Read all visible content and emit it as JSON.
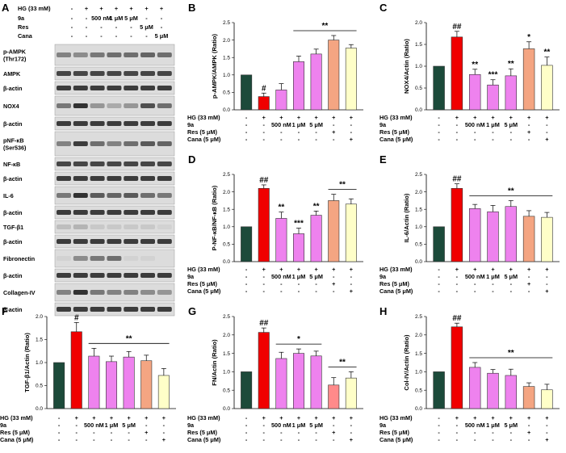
{
  "colors": {
    "control": "#1c4a3a",
    "hg": "#f00000",
    "compound": "#ee82ee",
    "res": "#f4a582",
    "cana": "#ffffc8",
    "fibro_res": "#ff8a8a"
  },
  "panelA": {
    "letter": "A",
    "conditions": [
      {
        "label": "HG (33 mM)",
        "values": [
          "-",
          "+",
          "+",
          "+",
          "+",
          "+",
          "+"
        ]
      },
      {
        "label": "9a",
        "values": [
          "-",
          "-",
          "500 nM",
          "1 μM",
          "5 μM",
          "-",
          "-"
        ]
      },
      {
        "label": "Res",
        "values": [
          "-",
          "-",
          "-",
          "-",
          "-",
          "5 μM",
          "-"
        ]
      },
      {
        "label": "Cana",
        "values": [
          "-",
          "-",
          "-",
          "-",
          "-",
          "-",
          "5 μM"
        ]
      }
    ],
    "bands": [
      {
        "label": "p-AMPK\n(Thr172)"
      },
      {
        "label": "AMPK"
      },
      {
        "label": "β-actin"
      },
      {
        "label": "NOX4"
      },
      {
        "label": "β-actin"
      },
      {
        "label": "pNF-κB\n(Ser536)"
      },
      {
        "label": "NF-κB"
      },
      {
        "label": "β-actin"
      },
      {
        "label": "IL-6"
      },
      {
        "label": "β-actin"
      },
      {
        "label": "TGF-β1"
      },
      {
        "label": "β-actin"
      },
      {
        "label": "Fibronectin"
      },
      {
        "label": "β-actin"
      },
      {
        "label": "Collagen-IV"
      },
      {
        "label": "β-actin"
      }
    ]
  },
  "chart_data": [
    {
      "panel": "B",
      "type": "bar",
      "ylabel": "p-AMPK/AMPK (Ratio)",
      "ylim": [
        0,
        2.5
      ],
      "yticks": [
        "0.0",
        "0.5",
        "1.0",
        "1.5",
        "2.0",
        "2.5"
      ],
      "values": [
        1.0,
        0.38,
        0.57,
        1.38,
        1.6,
        2.0,
        1.77
      ],
      "errors": [
        0,
        0.1,
        0.18,
        0.16,
        0.14,
        0.13,
        0.1
      ],
      "annotations": [
        "",
        "#",
        "",
        "",
        "",
        "",
        ""
      ],
      "bracket": {
        "from": 3,
        "to": 6,
        "label": "**"
      },
      "conditions": [
        {
          "label": "HG (33 mM)",
          "values": [
            "-",
            "+",
            "+",
            "+",
            "+",
            "+",
            "+"
          ]
        },
        {
          "label": "9a",
          "values": [
            "-",
            "-",
            "500 nM",
            "1 μM",
            "5 μM",
            "-",
            "-"
          ]
        },
        {
          "label": "Res (5 μM)",
          "values": [
            "-",
            "-",
            "-",
            "-",
            "-",
            "+",
            "-"
          ]
        },
        {
          "label": "Cana (5 μM)",
          "values": [
            "-",
            "-",
            "-",
            "-",
            "-",
            "-",
            "+"
          ]
        }
      ]
    },
    {
      "panel": "C",
      "type": "bar",
      "ylabel": "NOX4/Actin (Ratio)",
      "ylim": [
        0,
        2.0
      ],
      "yticks": [
        "0.0",
        "0.5",
        "1.0",
        "1.5",
        "2.0"
      ],
      "values": [
        1.0,
        1.67,
        0.81,
        0.57,
        0.78,
        1.4,
        1.02
      ],
      "errors": [
        0,
        0.13,
        0.12,
        0.12,
        0.16,
        0.16,
        0.19
      ],
      "annotations": [
        "",
        "##",
        "**",
        "***",
        "**",
        "*",
        "**"
      ],
      "bracket": null,
      "conditions": [
        {
          "label": "HG (33 mM)",
          "values": [
            "-",
            "+",
            "+",
            "+",
            "+",
            "+",
            "+"
          ]
        },
        {
          "label": "9a",
          "values": [
            "-",
            "-",
            "500 nM",
            "1 μM",
            "5 μM",
            "-",
            "-"
          ]
        },
        {
          "label": "Res (5 μM)",
          "values": [
            "-",
            "-",
            "-",
            "-",
            "-",
            "+",
            "-"
          ]
        },
        {
          "label": "Cana (5 μM)",
          "values": [
            "-",
            "-",
            "-",
            "-",
            "-",
            "-",
            "+"
          ]
        }
      ]
    },
    {
      "panel": "D",
      "type": "bar",
      "ylabel": "P-NF-κB/NF-κB (Ratio)",
      "ylim": [
        0,
        2.5
      ],
      "yticks": [
        "0.0",
        "0.5",
        "1.0",
        "1.5",
        "2.0",
        "2.5"
      ],
      "values": [
        1.0,
        2.1,
        1.24,
        0.8,
        1.33,
        1.75,
        1.65
      ],
      "errors": [
        0,
        0.1,
        0.18,
        0.16,
        0.12,
        0.18,
        0.15
      ],
      "annotations": [
        "",
        "##",
        "**",
        "***",
        "**",
        "",
        ""
      ],
      "bracket": {
        "from": 5,
        "to": 6,
        "label": "**"
      },
      "conditions": [
        {
          "label": "HG (33 mM)",
          "values": [
            "-",
            "+",
            "+",
            "+",
            "+",
            "+",
            "+"
          ]
        },
        {
          "label": "9a",
          "values": [
            "-",
            "-",
            "500 nM",
            "1 μM",
            "5 μM",
            "-",
            "-"
          ]
        },
        {
          "label": "Res (5 μM)",
          "values": [
            "-",
            "-",
            "-",
            "-",
            "-",
            "+",
            "-"
          ]
        },
        {
          "label": "Cana (5 μM)",
          "values": [
            "-",
            "-",
            "-",
            "-",
            "-",
            "-",
            "+"
          ]
        }
      ]
    },
    {
      "panel": "E",
      "type": "bar",
      "ylabel": "IL-6/Actin (Ratio)",
      "ylim": [
        0,
        2.5
      ],
      "yticks": [
        "0.0",
        "0.5",
        "1.0",
        "1.5",
        "2.0",
        "2.5"
      ],
      "values": [
        1.0,
        2.1,
        1.52,
        1.43,
        1.58,
        1.3,
        1.27
      ],
      "errors": [
        0,
        0.13,
        0.12,
        0.18,
        0.17,
        0.16,
        0.14
      ],
      "annotations": [
        "",
        "##",
        "",
        "",
        "",
        "",
        ""
      ],
      "bracket": {
        "from": 2,
        "to": 6,
        "label": "**"
      },
      "conditions": [
        {
          "label": "HG (33 mM)",
          "values": [
            "-",
            "+",
            "+",
            "+",
            "+",
            "+",
            "+"
          ]
        },
        {
          "label": "9a",
          "values": [
            "-",
            "-",
            "500 nM",
            "1 μM",
            "5 μM",
            "-",
            "-"
          ]
        },
        {
          "label": "Res (5 μM)",
          "values": [
            "-",
            "-",
            "-",
            "-",
            "-",
            "+",
            "-"
          ]
        },
        {
          "label": "Cana (5 μM)",
          "values": [
            "-",
            "-",
            "-",
            "-",
            "-",
            "-",
            "+"
          ]
        }
      ]
    },
    {
      "panel": "F",
      "type": "bar",
      "ylabel": "TGF-β1/Actin (Ratio)",
      "ylim": [
        0,
        2.0
      ],
      "yticks": [
        "0.0",
        "0.5",
        "1.0",
        "1.5",
        "2.0"
      ],
      "values": [
        1.0,
        1.67,
        1.14,
        1.02,
        1.12,
        1.04,
        0.72
      ],
      "errors": [
        0,
        0.2,
        0.17,
        0.12,
        0.12,
        0.12,
        0.15
      ],
      "annotations": [
        "",
        "#",
        "",
        "",
        "",
        "",
        ""
      ],
      "bracket": {
        "from": 2,
        "to": 6,
        "label": "**"
      },
      "conditions": [
        {
          "label": "HG (33 mM)",
          "values": [
            "-",
            "+",
            "+",
            "+",
            "+",
            "+",
            "+"
          ]
        },
        {
          "label": "9a",
          "values": [
            "-",
            "-",
            "500 nM",
            "1 μM",
            "5 μM",
            "-",
            "-"
          ]
        },
        {
          "label": "Res (5 μM)",
          "values": [
            "-",
            "-",
            "-",
            "-",
            "-",
            "+",
            "-"
          ]
        },
        {
          "label": "Cana (5 μM)",
          "values": [
            "-",
            "-",
            "-",
            "-",
            "-",
            "-",
            "+"
          ]
        }
      ]
    },
    {
      "panel": "G",
      "type": "bar",
      "ylabel": "FN/Actin (Ratio)",
      "ylim": [
        0,
        2.5
      ],
      "yticks": [
        "0.0",
        "0.5",
        "1.0",
        "1.5",
        "2.0",
        "2.5"
      ],
      "values": [
        1.0,
        2.07,
        1.36,
        1.5,
        1.43,
        0.64,
        0.83
      ],
      "errors": [
        0,
        0.12,
        0.17,
        0.12,
        0.13,
        0.2,
        0.17
      ],
      "annotations": [
        "",
        "##",
        "",
        "",
        "",
        "",
        ""
      ],
      "bracket": {
        "from": 2,
        "to": 4,
        "label": "*"
      },
      "bracket2": {
        "from": 5,
        "to": 6,
        "label": "**"
      },
      "conditions": [
        {
          "label": "HG (33 mM)",
          "values": [
            "-",
            "+",
            "+",
            "+",
            "+",
            "+",
            "+"
          ]
        },
        {
          "label": "9a",
          "values": [
            "-",
            "-",
            "500 nM",
            "1 μM",
            "5 μM",
            "-",
            "-"
          ]
        },
        {
          "label": "Res (5 μM)",
          "values": [
            "-",
            "-",
            "-",
            "-",
            "-",
            "+",
            "-"
          ]
        },
        {
          "label": "Cana (5 μM)",
          "values": [
            "-",
            "-",
            "-",
            "-",
            "-",
            "-",
            "+"
          ]
        }
      ]
    },
    {
      "panel": "H",
      "type": "bar",
      "ylabel": "Col-IV/Actin (Ratio)",
      "ylim": [
        0,
        2.5
      ],
      "yticks": [
        "0.0",
        "0.5",
        "1.0",
        "1.5",
        "2.0",
        "2.5"
      ],
      "values": [
        1.0,
        2.22,
        1.12,
        0.96,
        0.9,
        0.6,
        0.51
      ],
      "errors": [
        0,
        0.1,
        0.13,
        0.1,
        0.17,
        0.1,
        0.15
      ],
      "annotations": [
        "",
        "##",
        "",
        "",
        "",
        "",
        ""
      ],
      "bracket": {
        "from": 2,
        "to": 6,
        "label": "**"
      },
      "conditions": [
        {
          "label": "HG (33 mM)",
          "values": [
            "-",
            "+",
            "+",
            "+",
            "+",
            "+",
            "+"
          ]
        },
        {
          "label": "9a",
          "values": [
            "-",
            "-",
            "500 nM",
            "1 μM",
            "5 μM",
            "-",
            "-"
          ]
        },
        {
          "label": "Res (5 μM)",
          "values": [
            "-",
            "-",
            "-",
            "-",
            "-",
            "+",
            "-"
          ]
        },
        {
          "label": "Cana (5 μM)",
          "values": [
            "-",
            "-",
            "-",
            "-",
            "-",
            "-",
            "+"
          ]
        }
      ]
    }
  ]
}
